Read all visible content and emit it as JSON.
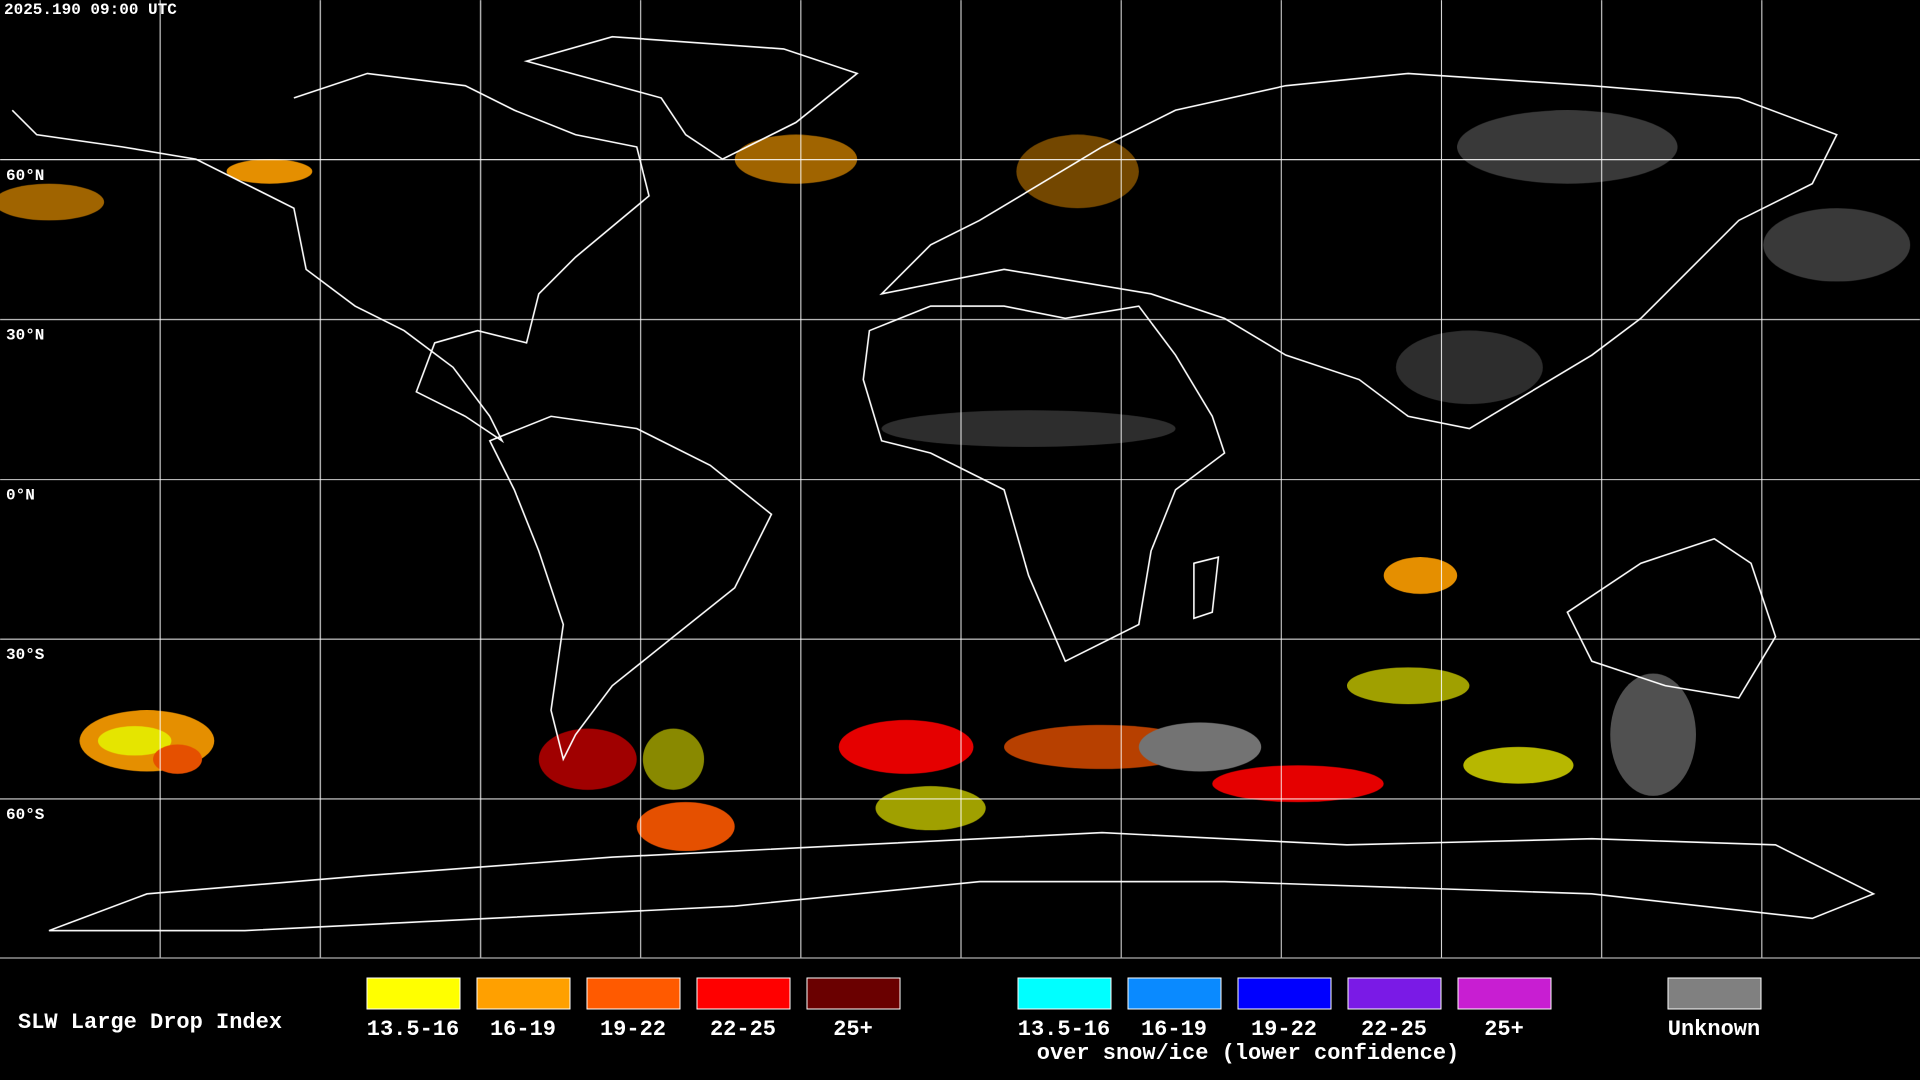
{
  "header": {
    "timestamp": "2025.190 09:00 UTC"
  },
  "map": {
    "latitude_labels": [
      "60°N",
      "30°N",
      "0°N",
      "30°S",
      "60°S"
    ]
  },
  "legend": {
    "title": "SLW Large Drop Index",
    "liquid": [
      {
        "label": "13.5-16",
        "color": "#ffff00"
      },
      {
        "label": "16-19",
        "color": "#ffa000"
      },
      {
        "label": "19-22",
        "color": "#ff5a00"
      },
      {
        "label": "22-25",
        "color": "#ff0000"
      },
      {
        "label": "25+",
        "color": "#6a0000"
      }
    ],
    "snow_ice": [
      {
        "label": "13.5-16",
        "color": "#00ffff"
      },
      {
        "label": "16-19",
        "color": "#0a8aff"
      },
      {
        "label": "19-22",
        "color": "#0000ff"
      },
      {
        "label": "22-25",
        "color": "#7a1ae6"
      },
      {
        "label": "25+",
        "color": "#c81ed2"
      }
    ],
    "snow_ice_caption": "over snow/ice (lower confidence)",
    "unknown": {
      "label": "Unknown",
      "color": "#808080"
    }
  }
}
